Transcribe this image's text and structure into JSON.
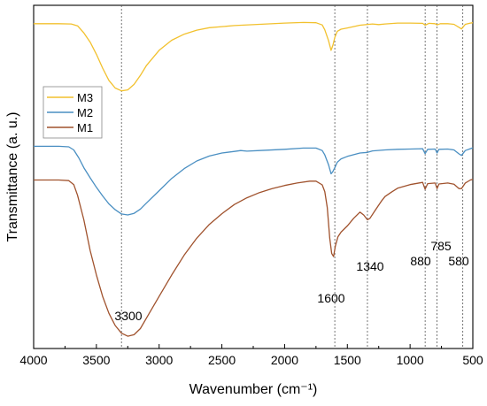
{
  "chart_data": {
    "type": "line",
    "xlabel": "Wavenumber (cm⁻¹)",
    "ylabel": "Transmittance (a. u.)",
    "xlim": [
      4000,
      500
    ],
    "x_direction": "reversed",
    "x_ticks": [
      4000,
      3500,
      3000,
      2500,
      2000,
      1500,
      1000,
      500
    ],
    "y_ticks": "none",
    "grid": false,
    "legend": {
      "placement": "left",
      "entries": [
        "M3",
        "M2",
        "M1"
      ]
    },
    "reference_lines": [
      3300,
      1600,
      1340,
      880,
      785,
      580
    ],
    "annotations": [
      {
        "text": "3300",
        "x": 3300
      },
      {
        "text": "1600",
        "x": 1600
      },
      {
        "text": "1340",
        "x": 1340
      },
      {
        "text": "880",
        "x": 880
      },
      {
        "text": "785",
        "x": 785
      },
      {
        "text": "580",
        "x": 580
      }
    ],
    "colors": {
      "M3": "#f2c12e",
      "M2": "#4a8fc2",
      "M1": "#a0522d"
    },
    "series": [
      {
        "name": "M3",
        "points": [
          [
            4000,
            0.9
          ],
          [
            3800,
            0.9
          ],
          [
            3700,
            0.899
          ],
          [
            3650,
            0.893
          ],
          [
            3600,
            0.87
          ],
          [
            3550,
            0.84
          ],
          [
            3500,
            0.8
          ],
          [
            3450,
            0.755
          ],
          [
            3400,
            0.715
          ],
          [
            3350,
            0.69
          ],
          [
            3300,
            0.681
          ],
          [
            3250,
            0.684
          ],
          [
            3200,
            0.702
          ],
          [
            3150,
            0.731
          ],
          [
            3100,
            0.764
          ],
          [
            3000,
            0.813
          ],
          [
            2900,
            0.846
          ],
          [
            2800,
            0.866
          ],
          [
            2700,
            0.879
          ],
          [
            2600,
            0.887
          ],
          [
            2400,
            0.894
          ],
          [
            2200,
            0.898
          ],
          [
            2000,
            0.902
          ],
          [
            1850,
            0.904
          ],
          [
            1750,
            0.903
          ],
          [
            1700,
            0.896
          ],
          [
            1680,
            0.88
          ],
          [
            1650,
            0.845
          ],
          [
            1630,
            0.813
          ],
          [
            1615,
            0.83
          ],
          [
            1600,
            0.855
          ],
          [
            1580,
            0.875
          ],
          [
            1550,
            0.882
          ],
          [
            1500,
            0.886
          ],
          [
            1400,
            0.895
          ],
          [
            1300,
            0.899
          ],
          [
            1250,
            0.897
          ],
          [
            1200,
            0.899
          ],
          [
            1100,
            0.902
          ],
          [
            1000,
            0.902
          ],
          [
            900,
            0.901
          ],
          [
            880,
            0.895
          ],
          [
            850,
            0.901
          ],
          [
            800,
            0.9
          ],
          [
            785,
            0.896
          ],
          [
            760,
            0.9
          ],
          [
            700,
            0.9
          ],
          [
            650,
            0.898
          ],
          [
            610,
            0.888
          ],
          [
            590,
            0.883
          ],
          [
            560,
            0.898
          ],
          [
            520,
            0.902
          ],
          [
            500,
            0.903
          ]
        ]
      },
      {
        "name": "M2",
        "points": [
          [
            4000,
            0.5
          ],
          [
            3800,
            0.5
          ],
          [
            3720,
            0.498
          ],
          [
            3680,
            0.488
          ],
          [
            3640,
            0.462
          ],
          [
            3600,
            0.43
          ],
          [
            3550,
            0.397
          ],
          [
            3500,
            0.366
          ],
          [
            3450,
            0.338
          ],
          [
            3400,
            0.312
          ],
          [
            3350,
            0.293
          ],
          [
            3300,
            0.279
          ],
          [
            3250,
            0.276
          ],
          [
            3200,
            0.281
          ],
          [
            3150,
            0.295
          ],
          [
            3100,
            0.315
          ],
          [
            3000,
            0.355
          ],
          [
            2900,
            0.395
          ],
          [
            2800,
            0.427
          ],
          [
            2700,
            0.452
          ],
          [
            2600,
            0.468
          ],
          [
            2500,
            0.478
          ],
          [
            2400,
            0.483
          ],
          [
            2350,
            0.486
          ],
          [
            2300,
            0.484
          ],
          [
            2200,
            0.486
          ],
          [
            2000,
            0.49
          ],
          [
            1850,
            0.494
          ],
          [
            1750,
            0.494
          ],
          [
            1700,
            0.486
          ],
          [
            1680,
            0.472
          ],
          [
            1650,
            0.44
          ],
          [
            1630,
            0.41
          ],
          [
            1615,
            0.418
          ],
          [
            1600,
            0.43
          ],
          [
            1580,
            0.448
          ],
          [
            1550,
            0.459
          ],
          [
            1500,
            0.467
          ],
          [
            1400,
            0.478
          ],
          [
            1340,
            0.48
          ],
          [
            1300,
            0.485
          ],
          [
            1200,
            0.488
          ],
          [
            1100,
            0.49
          ],
          [
            1000,
            0.491
          ],
          [
            900,
            0.492
          ],
          [
            880,
            0.476
          ],
          [
            860,
            0.49
          ],
          [
            800,
            0.491
          ],
          [
            785,
            0.478
          ],
          [
            770,
            0.49
          ],
          [
            700,
            0.491
          ],
          [
            650,
            0.488
          ],
          [
            610,
            0.475
          ],
          [
            590,
            0.47
          ],
          [
            560,
            0.486
          ],
          [
            520,
            0.492
          ],
          [
            500,
            0.495
          ]
        ]
      },
      {
        "name": "M1",
        "points": [
          [
            4000,
            0.39
          ],
          [
            3800,
            0.39
          ],
          [
            3720,
            0.388
          ],
          [
            3680,
            0.375
          ],
          [
            3650,
            0.34
          ],
          [
            3600,
            0.26
          ],
          [
            3550,
            0.16
          ],
          [
            3500,
            0.08
          ],
          [
            3450,
            0.01
          ],
          [
            3400,
            -0.045
          ],
          [
            3350,
            -0.085
          ],
          [
            3300,
            -0.11
          ],
          [
            3250,
            -0.12
          ],
          [
            3200,
            -0.115
          ],
          [
            3150,
            -0.095
          ],
          [
            3100,
            -0.06
          ],
          [
            3000,
            0.01
          ],
          [
            2900,
            0.08
          ],
          [
            2800,
            0.145
          ],
          [
            2700,
            0.2
          ],
          [
            2600,
            0.245
          ],
          [
            2500,
            0.28
          ],
          [
            2400,
            0.31
          ],
          [
            2300,
            0.332
          ],
          [
            2200,
            0.349
          ],
          [
            2100,
            0.362
          ],
          [
            2000,
            0.372
          ],
          [
            1900,
            0.38
          ],
          [
            1800,
            0.386
          ],
          [
            1750,
            0.386
          ],
          [
            1700,
            0.374
          ],
          [
            1680,
            0.352
          ],
          [
            1660,
            0.3
          ],
          [
            1640,
            0.2
          ],
          [
            1625,
            0.15
          ],
          [
            1610,
            0.14
          ],
          [
            1595,
            0.175
          ],
          [
            1575,
            0.205
          ],
          [
            1550,
            0.22
          ],
          [
            1500,
            0.24
          ],
          [
            1450,
            0.265
          ],
          [
            1400,
            0.285
          ],
          [
            1370,
            0.276
          ],
          [
            1340,
            0.26
          ],
          [
            1320,
            0.265
          ],
          [
            1280,
            0.29
          ],
          [
            1230,
            0.32
          ],
          [
            1200,
            0.336
          ],
          [
            1150,
            0.35
          ],
          [
            1100,
            0.363
          ],
          [
            1000,
            0.375
          ],
          [
            900,
            0.382
          ],
          [
            880,
            0.36
          ],
          [
            860,
            0.378
          ],
          [
            800,
            0.38
          ],
          [
            785,
            0.362
          ],
          [
            770,
            0.377
          ],
          [
            700,
            0.38
          ],
          [
            650,
            0.376
          ],
          [
            610,
            0.362
          ],
          [
            590,
            0.362
          ],
          [
            560,
            0.38
          ],
          [
            520,
            0.39
          ],
          [
            500,
            0.392
          ]
        ]
      }
    ]
  }
}
